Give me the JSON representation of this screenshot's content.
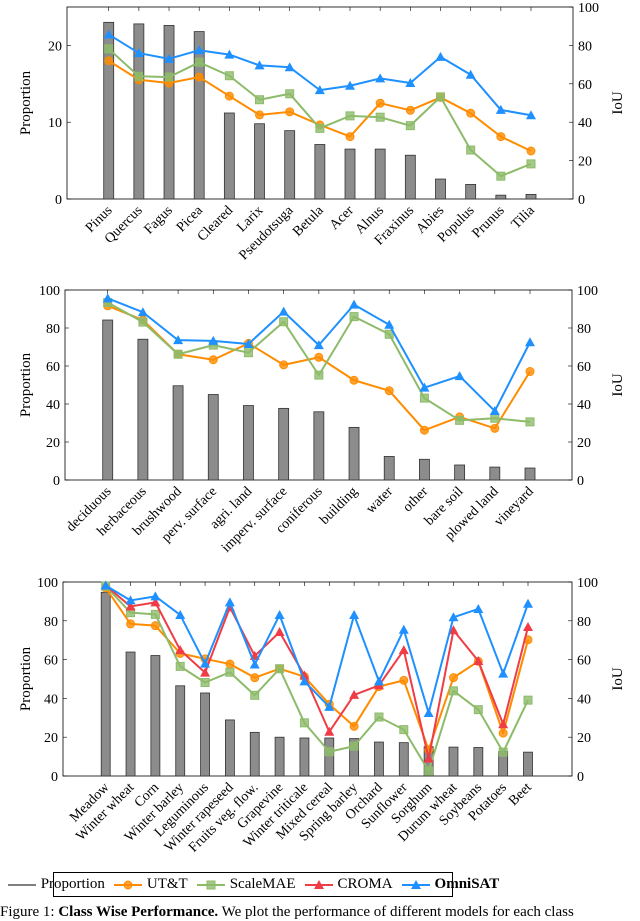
{
  "chart_data": [
    {
      "type": "bar+line",
      "ylabel": "Proportion",
      "ylabel_right": "IoU",
      "ylim": [
        0,
        25
      ],
      "yticks": [
        0,
        10,
        20
      ],
      "ylim_right": [
        0,
        100
      ],
      "yticks_right": [
        0,
        20,
        40,
        60,
        80,
        100
      ],
      "categories": [
        "Pinus",
        "Quercus",
        "Fagus",
        "Picea",
        "Cleared",
        "Larix",
        "Pseudotsuga",
        "Betula",
        "Acer",
        "Alnus",
        "Fraxinus",
        "Abies",
        "Populus",
        "Prunus",
        "Tilia"
      ],
      "proportion": [
        23.0,
        22.8,
        22.6,
        21.8,
        11.2,
        9.8,
        8.9,
        7.1,
        6.5,
        6.5,
        5.7,
        2.6,
        1.9,
        0.5,
        0.6
      ],
      "series": [
        {
          "name": "UT&T",
          "values": [
            72,
            62.1,
            60.4,
            63.5,
            53.6,
            43.8,
            45.4,
            38.6,
            32.5,
            49.9,
            46.2,
            52.9,
            44.7,
            32.5,
            25
          ]
        },
        {
          "name": "ScaleMAE",
          "values": [
            78.2,
            63.9,
            63.5,
            71.2,
            64.2,
            51.7,
            54.8,
            36.8,
            43.3,
            42.6,
            38.2,
            53.2,
            25.5,
            11.9,
            18.3
          ]
        },
        {
          "name": "OmniSAT",
          "values": [
            85.7,
            76,
            73,
            77.5,
            75.2,
            69.6,
            68.6,
            56.7,
            59,
            62.8,
            60.4,
            74,
            64.7,
            46.4,
            43.6
          ]
        }
      ]
    },
    {
      "type": "bar+line",
      "ylabel": "Proportion",
      "ylabel_right": "IoU",
      "ylim": [
        0,
        100
      ],
      "yticks": [
        0,
        20,
        40,
        60,
        80,
        100
      ],
      "ylim_right": [
        0,
        100
      ],
      "yticks_right": [
        0,
        20,
        40,
        60,
        80,
        100
      ],
      "categories": [
        "deciduous",
        "herbaceous",
        "brushwood",
        "perv. surface",
        "agri. land",
        "imperv. surface",
        "coniferous",
        "building",
        "water",
        "other",
        "bare soil",
        "plowed land",
        "vineyard"
      ],
      "proportion": [
        84.2,
        74.1,
        49.6,
        45,
        39.2,
        37.7,
        35.9,
        27.7,
        12.4,
        10.9,
        7.9,
        6.8,
        6.3
      ],
      "series": [
        {
          "name": "UT&T",
          "values": [
            91.7,
            84.2,
            66.2,
            63.3,
            71.9,
            60.6,
            64.6,
            52.5,
            47,
            26.2,
            33.2,
            27.2,
            57.1
          ]
        },
        {
          "name": "ScaleMAE",
          "values": [
            93.4,
            83.1,
            66.2,
            71,
            67,
            83.3,
            55.2,
            86,
            76.7,
            43.1,
            31.4,
            32.5,
            30.6
          ]
        },
        {
          "name": "OmniSAT",
          "values": [
            95.6,
            88.3,
            73.6,
            73.2,
            71.6,
            88.6,
            71,
            92.3,
            81.7,
            48.6,
            54.7,
            36.3,
            72.5
          ]
        }
      ]
    },
    {
      "type": "bar+line",
      "ylabel": "Proportion",
      "ylabel_right": "IoU",
      "ylim": [
        0,
        100
      ],
      "yticks": [
        0,
        20,
        40,
        60,
        80,
        100
      ],
      "ylim_right": [
        0,
        100
      ],
      "yticks_right": [
        0,
        20,
        40,
        60,
        80,
        100
      ],
      "categories": [
        "Meadow",
        "Winter wheat",
        "Corn",
        "Winter barley",
        "Leguminous",
        "Winter rapeseed",
        "Fruits veg. flow.",
        "Grapevine",
        "Winter triticale",
        "Mixed cereal",
        "Spring barley",
        "Orchard",
        "Sunflower",
        "Sorghum",
        "Durum wheat",
        "Soybeans",
        "Potatoes",
        "Beet"
      ],
      "proportion": [
        94.7,
        63.9,
        62.1,
        46.5,
        42.8,
        28.9,
        22.5,
        20,
        19.6,
        19.6,
        19.3,
        17.5,
        17.2,
        15.1,
        14.9,
        14.7,
        12.6,
        12.3
      ],
      "series": [
        {
          "name": "UT&T",
          "values": [
            97,
            78.4,
            77.5,
            63.2,
            60.4,
            57.7,
            50.7,
            55.3,
            51.2,
            37,
            25.6,
            46.1,
            49.3,
            13.5,
            50.7,
            59.1,
            22.1,
            70.2
          ]
        },
        {
          "name": "ScaleMAE",
          "values": [
            97.9,
            84.2,
            83.3,
            56.5,
            48.2,
            53.5,
            41.6,
            55.3,
            27.4,
            12.5,
            15.4,
            30.4,
            23.9,
            2.6,
            43.9,
            34.2,
            12.3,
            39.1
          ]
        },
        {
          "name": "CROMA",
          "values": [
            98.2,
            87.4,
            89.5,
            64.9,
            53.3,
            87,
            61.9,
            74.2,
            51.8,
            22.8,
            41.8,
            46.7,
            64.9,
            9,
            75.1,
            59.3,
            26.7,
            76.8
          ]
        },
        {
          "name": "OmniSAT",
          "values": [
            98.2,
            90.5,
            92.6,
            83,
            57.9,
            89.5,
            57.5,
            83,
            48.8,
            35.6,
            83,
            48.8,
            75.4,
            32.5,
            81.8,
            86.1,
            52.8,
            88.8
          ]
        }
      ]
    }
  ],
  "legend": {
    "placement": "bottom",
    "items": [
      {
        "name": "Proportion",
        "color": "#000000",
        "marker": "none"
      },
      {
        "name": "UT&T",
        "color": "#FF8C00",
        "marker": "circle"
      },
      {
        "name": "ScaleMAE",
        "color": "#8DBB6A",
        "marker": "square"
      },
      {
        "name": "CROMA",
        "color": "#F03C46",
        "marker": "triangle"
      },
      {
        "name": "OmniSAT",
        "color": "#1E90FF",
        "marker": "triangle",
        "bold": true
      }
    ]
  },
  "bar_color": "#8C8C8C",
  "caption": {
    "prefix": "Figure 1: ",
    "bold": "Class Wise Performance.",
    "text": " We plot the performance of different models for each class"
  }
}
